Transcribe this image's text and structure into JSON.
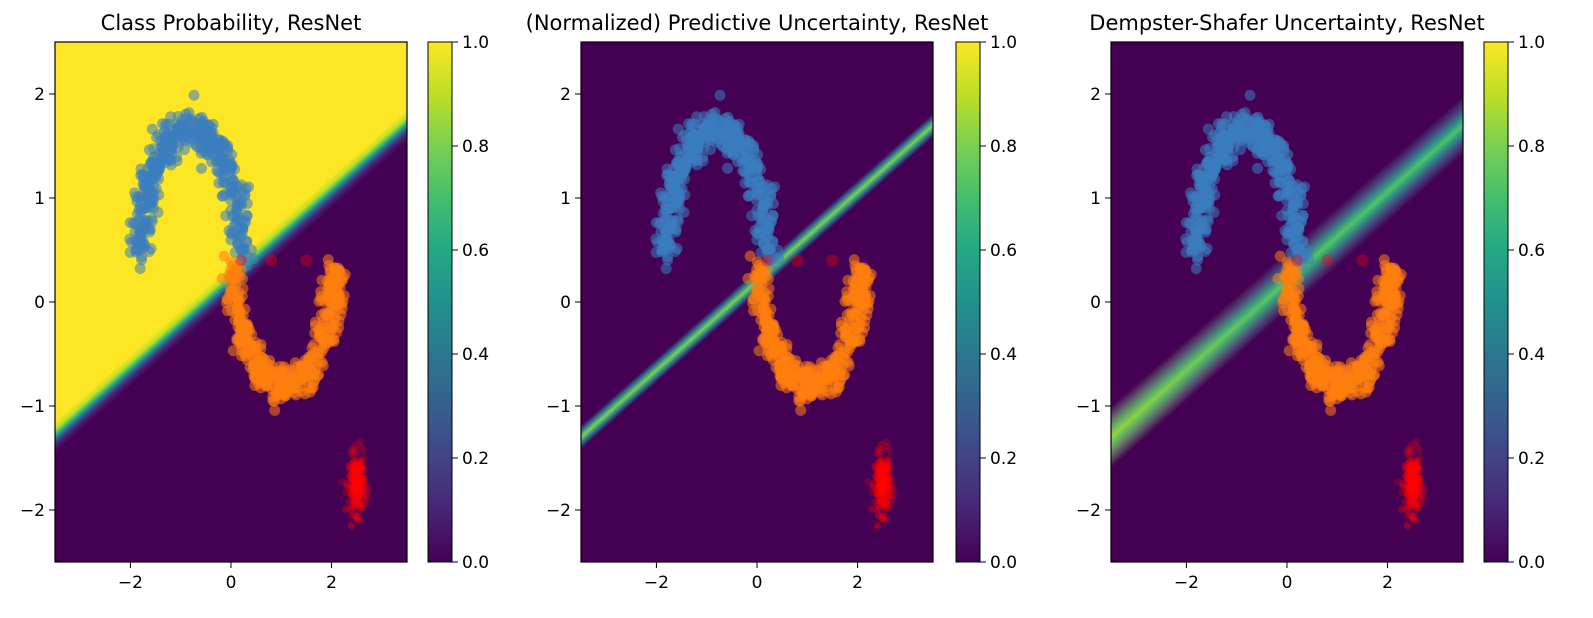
{
  "figure": {
    "panels": [
      {
        "title": "Class Probability, ResNet"
      },
      {
        "title": "(Normalized) Predictive Uncertainty, ResNet"
      },
      {
        "title": "Dempster-Shafer Uncertainty, ResNet"
      }
    ],
    "x_ticks": [
      "−2",
      "0",
      "2"
    ],
    "y_ticks": [
      "2",
      "1",
      "0",
      "−1",
      "−2"
    ],
    "colorbar_ticks": [
      "1.0",
      "0.8",
      "0.6",
      "0.4",
      "0.2",
      "0.0"
    ],
    "colormap": "viridis",
    "colors": {
      "class_a": "#3a7ebf",
      "class_b": "#ff7f0e",
      "ood": "#ff0000",
      "viridis_low": "#440154",
      "viridis_high": "#fde725"
    }
  },
  "chart_data": [
    {
      "type": "heatmap",
      "title": "Class Probability, ResNet",
      "xlim": [
        -3.5,
        3.5
      ],
      "ylim": [
        -2.5,
        2.5
      ],
      "colorbar_range": [
        0.0,
        1.0
      ],
      "field": "class probability, ~1.0 above decision boundary, ~0.0 below",
      "decision_boundary": {
        "x": [
          -3.5,
          3.5
        ],
        "y": [
          -1.3,
          1.7
        ]
      },
      "boundary_width": "narrow",
      "scatter": [
        {
          "cluster": "upper moon",
          "color": "#3a7ebf",
          "x_range": [
            -1.95,
            0.35
          ],
          "y_range": [
            0.4,
            1.7
          ]
        },
        {
          "cluster": "lower moon",
          "color": "#ff7f0e",
          "x_range": [
            -0.1,
            2.4
          ],
          "y_range": [
            -0.95,
            0.5
          ]
        },
        {
          "cluster": "OOD blob",
          "color": "#ff0000",
          "center": [
            2.5,
            -1.75
          ]
        },
        {
          "cluster": "OOD points",
          "color": "#ff0000",
          "x": [
            0.2,
            0.8,
            1.5
          ],
          "y": [
            0.4,
            0.4,
            0.4
          ]
        }
      ]
    },
    {
      "type": "heatmap",
      "title": "(Normalized) Predictive Uncertainty, ResNet",
      "xlim": [
        -3.5,
        3.5
      ],
      "ylim": [
        -2.5,
        2.5
      ],
      "colorbar_range": [
        0.0,
        1.0
      ],
      "field": "high (~0.75) only along decision boundary, ~0.0 elsewhere",
      "decision_boundary": {
        "x": [
          -3.5,
          3.5
        ],
        "y": [
          -1.3,
          1.7
        ]
      },
      "peak_value": 0.75,
      "scatter": [
        {
          "cluster": "upper moon",
          "color": "#3a7ebf",
          "x_range": [
            -1.95,
            0.35
          ],
          "y_range": [
            0.4,
            1.7
          ]
        },
        {
          "cluster": "lower moon",
          "color": "#ff7f0e",
          "x_range": [
            -0.1,
            2.4
          ],
          "y_range": [
            -0.95,
            0.5
          ]
        },
        {
          "cluster": "OOD blob",
          "color": "#ff0000",
          "center": [
            2.5,
            -1.75
          ]
        },
        {
          "cluster": "OOD points",
          "color": "#ff0000",
          "x": [
            0.2,
            0.8,
            1.5
          ],
          "y": [
            0.4,
            0.4,
            0.4
          ]
        }
      ]
    },
    {
      "type": "heatmap",
      "title": "Dempster-Shafer Uncertainty, ResNet",
      "xlim": [
        -3.5,
        3.5
      ],
      "ylim": [
        -2.5,
        2.5
      ],
      "colorbar_range": [
        0.0,
        1.0
      ],
      "field": "high along decision boundary, widening and increasing toward lower-left (~0.9), ~0.0 elsewhere",
      "decision_boundary": {
        "x": [
          -3.5,
          3.5
        ],
        "y": [
          -1.3,
          1.7
        ]
      },
      "peak_value": 0.9,
      "scatter": [
        {
          "cluster": "upper moon",
          "color": "#3a7ebf",
          "x_range": [
            -1.95,
            0.35
          ],
          "y_range": [
            0.4,
            1.7
          ]
        },
        {
          "cluster": "lower moon",
          "color": "#ff7f0e",
          "x_range": [
            -0.1,
            2.4
          ],
          "y_range": [
            -0.95,
            0.5
          ]
        },
        {
          "cluster": "OOD blob",
          "color": "#ff0000",
          "center": [
            2.5,
            -1.75
          ]
        },
        {
          "cluster": "OOD points",
          "color": "#ff0000",
          "x": [
            0.2,
            0.8,
            1.5
          ],
          "y": [
            0.4,
            0.4,
            0.4
          ]
        }
      ]
    }
  ]
}
